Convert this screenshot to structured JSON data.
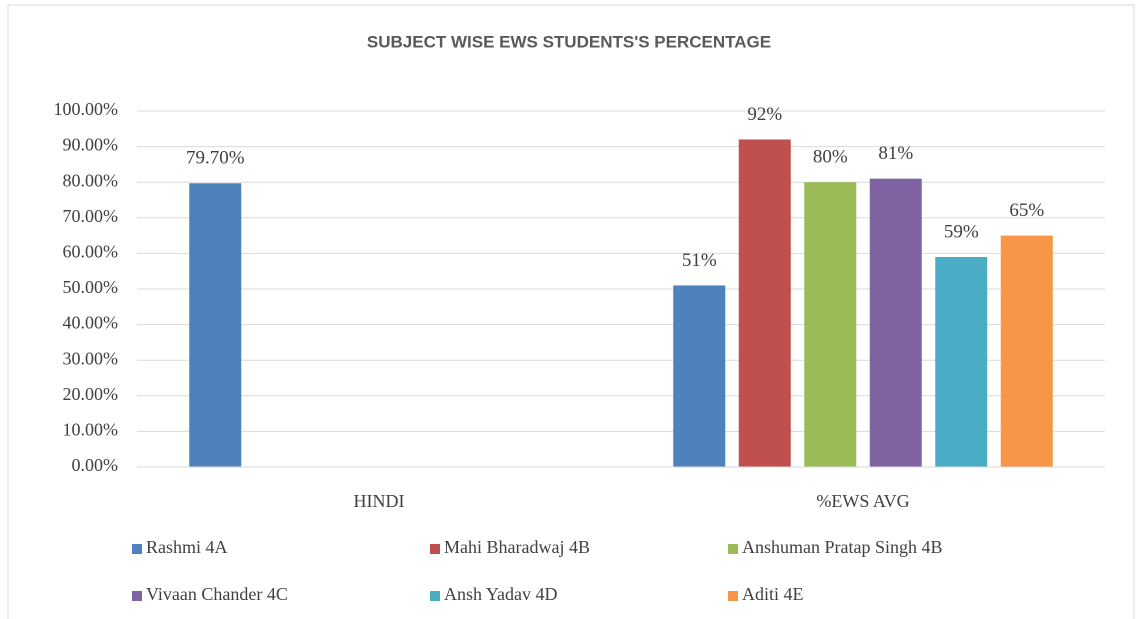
{
  "chart_data": {
    "type": "bar",
    "title": "SUBJECT WISE EWS STUDENTS'S PERCENTAGE",
    "categories": [
      "HINDI",
      "%EWS AVG"
    ],
    "series": [
      {
        "name": "Rashmi 4A",
        "color": "#4f81bd",
        "values": [
          79.7,
          51
        ],
        "value_labels": [
          "79.70%",
          "51%"
        ]
      },
      {
        "name": "Mahi Bharadwaj 4B",
        "color": "#c0504d",
        "values": [
          null,
          92
        ],
        "value_labels": [
          null,
          "92%"
        ]
      },
      {
        "name": "Anshuman Pratap Singh 4B",
        "color": "#9bbb59",
        "values": [
          null,
          80
        ],
        "value_labels": [
          null,
          "80%"
        ]
      },
      {
        "name": "Vivaan Chander 4C",
        "color": "#8064a2",
        "values": [
          null,
          81
        ],
        "value_labels": [
          null,
          "81%"
        ]
      },
      {
        "name": "Ansh Yadav 4D",
        "color": "#4bacc6",
        "values": [
          null,
          59
        ],
        "value_labels": [
          null,
          "59%"
        ]
      },
      {
        "name": "Aditi 4E",
        "color": "#f79646",
        "values": [
          null,
          65
        ],
        "value_labels": [
          null,
          "65%"
        ]
      }
    ],
    "ylim": [
      0,
      100
    ],
    "yticks": [
      {
        "value": 0,
        "label": "0.00%"
      },
      {
        "value": 10,
        "label": "10.00%"
      },
      {
        "value": 20,
        "label": "20.00%"
      },
      {
        "value": 30,
        "label": "30.00%"
      },
      {
        "value": 40,
        "label": "40.00%"
      },
      {
        "value": 50,
        "label": "50.00%"
      },
      {
        "value": 60,
        "label": "60.00%"
      },
      {
        "value": 70,
        "label": "70.00%"
      },
      {
        "value": 80,
        "label": "80.00%"
      },
      {
        "value": 90,
        "label": "90.00%"
      },
      {
        "value": 100,
        "label": "100.00%"
      }
    ],
    "grid": true,
    "legend": "bottom"
  }
}
